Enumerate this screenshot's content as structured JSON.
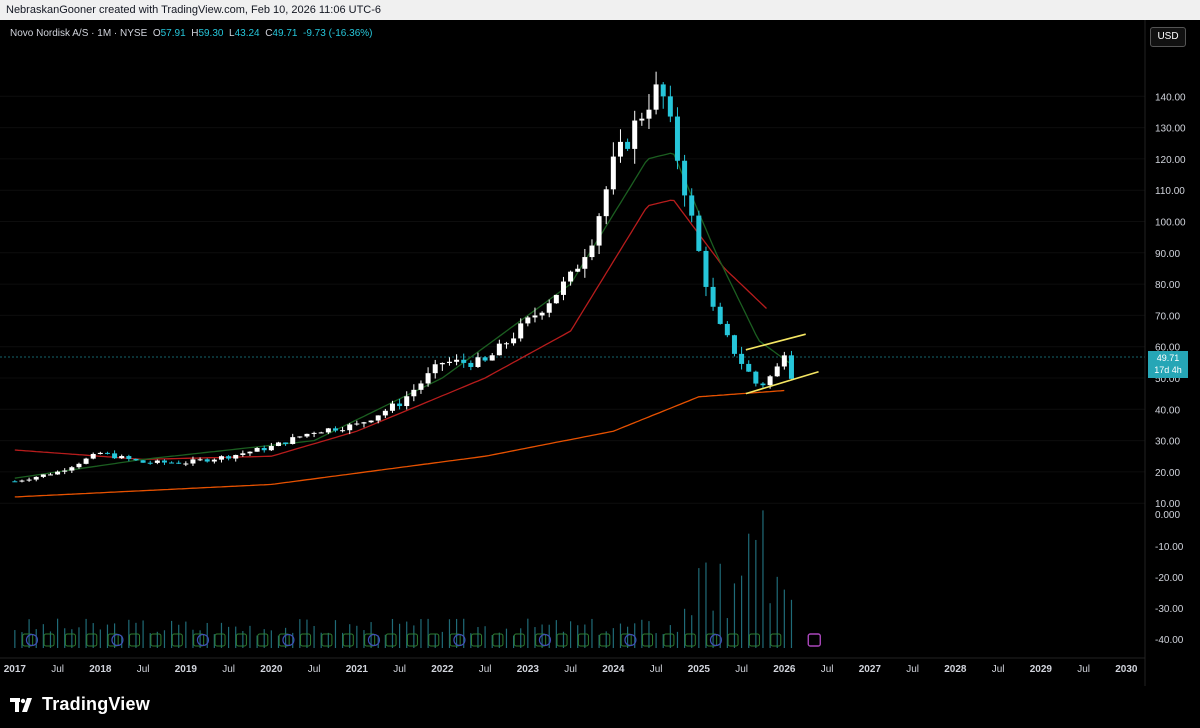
{
  "header": {
    "credit": "NebraskanGooner created with TradingView.com, Feb 10, 2026 11:06 UTC-6"
  },
  "legend": {
    "symbol": "Novo Nordisk A/S · 1M · NYSE",
    "open_label": "O",
    "open": "57.91",
    "high_label": "H",
    "high": "59.30",
    "low_label": "L",
    "low": "43.24",
    "close_label": "C",
    "close": "49.71",
    "change": "-9.73 (-16.36%)"
  },
  "currency_button": "USD",
  "price_tag": {
    "price": "49.71",
    "countdown": "17d 4h"
  },
  "brand": {
    "name": "TradingView"
  },
  "colors": {
    "up": "#ffffff",
    "down": "#26c6da",
    "ma_short": "#1b5e20",
    "ma_mid": "#b71c1c",
    "ma_long": "#e65100",
    "channel": "#f5e663"
  },
  "chart_data": {
    "type": "candlestick",
    "interval": "1M",
    "price_ticks": [
      "140.00",
      "130.00",
      "120.00",
      "110.00",
      "100.00",
      "90.00",
      "80.00",
      "70.00",
      "60.00",
      "50.00",
      "40.00",
      "30.00",
      "20.00",
      "10.00"
    ],
    "indicator_ticks": [
      "0.000",
      "-10.00",
      "-20.00",
      "-30.00",
      "-40.00"
    ],
    "time_ticks": [
      "2017",
      "Jul",
      "2018",
      "Jul",
      "2019",
      "Jul",
      "2020",
      "Jul",
      "2021",
      "Jul",
      "2022",
      "Jul",
      "2023",
      "Jul",
      "2024",
      "Jul",
      "2025",
      "Jul",
      "2026",
      "Jul",
      "2027",
      "Jul",
      "2028",
      "Jul",
      "2029",
      "Jul",
      "2030"
    ],
    "close_series_anchors": [
      {
        "t": 2017.0,
        "v": 17
      },
      {
        "t": 2017.5,
        "v": 20
      },
      {
        "t": 2018.0,
        "v": 26
      },
      {
        "t": 2018.5,
        "v": 23
      },
      {
        "t": 2019.0,
        "v": 23
      },
      {
        "t": 2019.5,
        "v": 25
      },
      {
        "t": 2020.0,
        "v": 28
      },
      {
        "t": 2020.5,
        "v": 33
      },
      {
        "t": 2021.0,
        "v": 35
      },
      {
        "t": 2021.5,
        "v": 42
      },
      {
        "t": 2022.0,
        "v": 55
      },
      {
        "t": 2022.5,
        "v": 55
      },
      {
        "t": 2023.0,
        "v": 68
      },
      {
        "t": 2023.5,
        "v": 82
      },
      {
        "t": 2023.75,
        "v": 95
      },
      {
        "t": 2024.0,
        "v": 118
      },
      {
        "t": 2024.4,
        "v": 138
      },
      {
        "t": 2024.55,
        "v": 143
      },
      {
        "t": 2024.8,
        "v": 115
      },
      {
        "t": 2025.0,
        "v": 90
      },
      {
        "t": 2025.2,
        "v": 68
      },
      {
        "t": 2025.5,
        "v": 55
      },
      {
        "t": 2025.7,
        "v": 47
      },
      {
        "t": 2025.9,
        "v": 52
      },
      {
        "t": 2026.0,
        "v": 59
      },
      {
        "t": 2026.1,
        "v": 49.71
      }
    ],
    "ma_long_anchors": [
      {
        "t": 2017.0,
        "v": 12
      },
      {
        "t": 2020.0,
        "v": 16
      },
      {
        "t": 2022.5,
        "v": 25
      },
      {
        "t": 2024.0,
        "v": 33
      },
      {
        "t": 2025.0,
        "v": 44
      },
      {
        "t": 2026.0,
        "v": 46
      }
    ],
    "ma_mid_anchors": [
      {
        "t": 2017.0,
        "v": 27
      },
      {
        "t": 2018.5,
        "v": 24
      },
      {
        "t": 2020.0,
        "v": 25
      },
      {
        "t": 2021.0,
        "v": 33
      },
      {
        "t": 2022.5,
        "v": 50
      },
      {
        "t": 2023.5,
        "v": 65
      },
      {
        "t": 2024.4,
        "v": 105
      },
      {
        "t": 2024.7,
        "v": 107
      },
      {
        "t": 2025.3,
        "v": 85
      },
      {
        "t": 2025.8,
        "v": 72
      }
    ],
    "ma_short_anchors": [
      {
        "t": 2017.0,
        "v": 18
      },
      {
        "t": 2018.5,
        "v": 24
      },
      {
        "t": 2020.5,
        "v": 30
      },
      {
        "t": 2022.0,
        "v": 50
      },
      {
        "t": 2023.5,
        "v": 80
      },
      {
        "t": 2024.4,
        "v": 120
      },
      {
        "t": 2024.7,
        "v": 122
      },
      {
        "t": 2025.2,
        "v": 90
      },
      {
        "t": 2025.7,
        "v": 62
      },
      {
        "t": 2026.1,
        "v": 54
      }
    ],
    "channel_upper": [
      {
        "t": 2025.55,
        "v": 59
      },
      {
        "t": 2026.25,
        "v": 64
      }
    ],
    "channel_lower": [
      {
        "t": 2025.55,
        "v": 45
      },
      {
        "t": 2026.4,
        "v": 52
      }
    ],
    "event_markers": "D = dividend, E = earnings"
  }
}
